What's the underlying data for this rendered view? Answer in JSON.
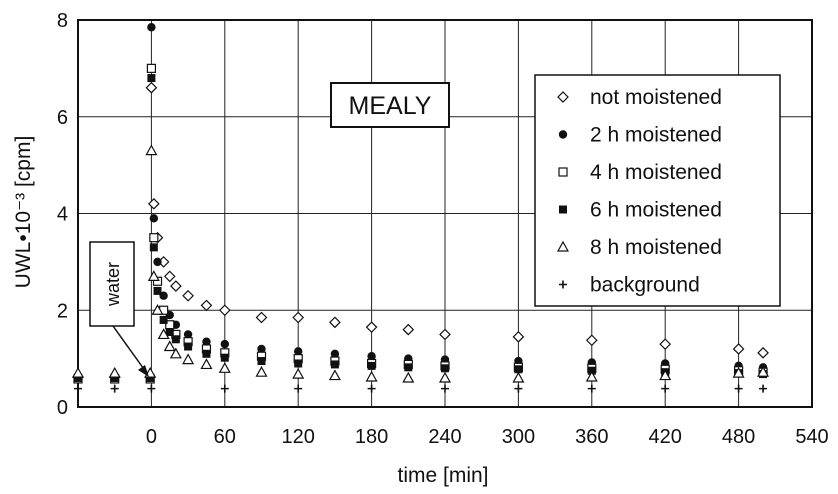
{
  "chart_data": {
    "type": "scatter",
    "title": "",
    "xlabel": "time [min]",
    "ylabel": "UWL•10⁻³ [cpm]",
    "xlim": [
      -60,
      540
    ],
    "ylim": [
      0,
      8
    ],
    "x_ticks": [
      0,
      60,
      120,
      180,
      240,
      300,
      360,
      420,
      480,
      540
    ],
    "y_ticks": [
      0,
      2,
      4,
      6,
      8
    ],
    "grid": true,
    "legend_position": "top-right",
    "annotations": {
      "label": "MEALY",
      "arrow_label": "water",
      "arrow_target": [
        0,
        0.6
      ]
    },
    "series": [
      {
        "name": "not moistened",
        "marker": "diamond-open",
        "x": [
          -60,
          -30,
          -1,
          0,
          2,
          5,
          10,
          15,
          20,
          30,
          45,
          60,
          90,
          120,
          150,
          180,
          210,
          240,
          300,
          360,
          420,
          480,
          500
        ],
        "y": [
          0.62,
          0.62,
          0.62,
          6.6,
          4.2,
          3.5,
          3.0,
          2.7,
          2.5,
          2.3,
          2.1,
          2.0,
          1.85,
          1.85,
          1.75,
          1.65,
          1.6,
          1.5,
          1.45,
          1.38,
          1.3,
          1.2,
          1.12
        ]
      },
      {
        "name": "2 h moistened",
        "marker": "circle-filled",
        "x": [
          -60,
          -30,
          -1,
          0,
          2,
          5,
          10,
          15,
          20,
          30,
          45,
          60,
          90,
          120,
          150,
          180,
          210,
          240,
          300,
          360,
          420,
          480,
          500
        ],
        "y": [
          0.62,
          0.62,
          0.62,
          7.85,
          3.9,
          3.0,
          2.3,
          1.9,
          1.7,
          1.5,
          1.35,
          1.3,
          1.2,
          1.15,
          1.1,
          1.05,
          1.0,
          0.98,
          0.95,
          0.92,
          0.9,
          0.85,
          0.82
        ]
      },
      {
        "name": "4 h moistened",
        "marker": "square-open",
        "x": [
          -60,
          -30,
          -1,
          0,
          2,
          5,
          10,
          15,
          20,
          30,
          45,
          60,
          90,
          120,
          150,
          180,
          210,
          240,
          300,
          360,
          420,
          480,
          500
        ],
        "y": [
          0.58,
          0.58,
          0.58,
          7.0,
          3.5,
          2.6,
          2.0,
          1.7,
          1.5,
          1.35,
          1.2,
          1.12,
          1.05,
          1.0,
          0.95,
          0.9,
          0.88,
          0.85,
          0.82,
          0.8,
          0.78,
          0.75,
          0.72
        ]
      },
      {
        "name": "6 h moistened",
        "marker": "square-filled",
        "x": [
          -60,
          -30,
          -1,
          0,
          2,
          5,
          10,
          15,
          20,
          30,
          45,
          60,
          90,
          120,
          150,
          180,
          210,
          240,
          300,
          360,
          420,
          480,
          500
        ],
        "y": [
          0.6,
          0.6,
          0.6,
          6.8,
          3.3,
          2.4,
          1.8,
          1.55,
          1.4,
          1.25,
          1.1,
          1.02,
          0.95,
          0.9,
          0.88,
          0.85,
          0.82,
          0.8,
          0.78,
          0.75,
          0.72,
          0.7,
          0.68
        ]
      },
      {
        "name": "8 h moistened",
        "marker": "triangle-open",
        "x": [
          -60,
          -30,
          -1,
          0,
          2,
          5,
          10,
          15,
          20,
          30,
          45,
          60,
          90,
          120,
          150,
          180,
          210,
          240,
          300,
          360,
          420,
          480,
          500
        ],
        "y": [
          0.7,
          0.7,
          0.7,
          5.3,
          2.7,
          2.0,
          1.5,
          1.25,
          1.1,
          0.98,
          0.88,
          0.8,
          0.72,
          0.68,
          0.65,
          0.62,
          0.6,
          0.6,
          0.6,
          0.62,
          0.65,
          0.7,
          0.72
        ]
      },
      {
        "name": "background",
        "marker": "plus",
        "x": [
          -60,
          -30,
          0,
          60,
          120,
          180,
          240,
          300,
          360,
          420,
          480,
          500
        ],
        "y": [
          0.38,
          0.38,
          0.38,
          0.38,
          0.38,
          0.38,
          0.38,
          0.38,
          0.38,
          0.38,
          0.38,
          0.38
        ]
      }
    ]
  }
}
